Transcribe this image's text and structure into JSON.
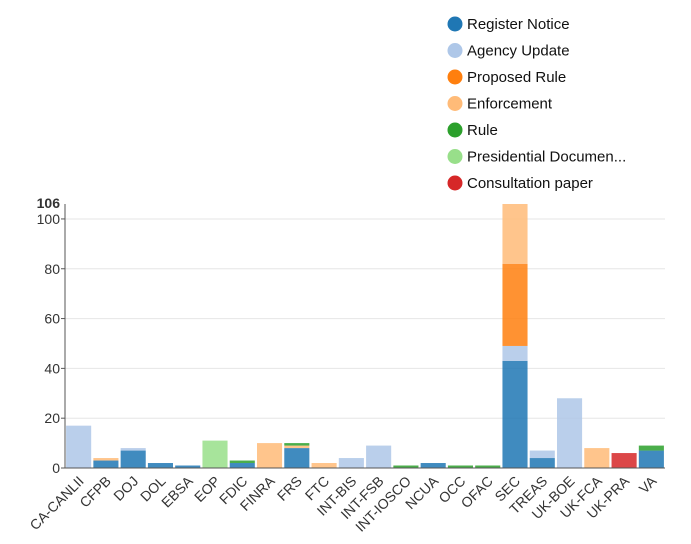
{
  "chart_data": {
    "type": "bar",
    "stacked": true,
    "categories": [
      "CA-CANLII",
      "CFPB",
      "DOJ",
      "DOL",
      "EBSA",
      "EOP",
      "FDIC",
      "FINRA",
      "FRS",
      "FTC",
      "INT-BIS",
      "INT-FSB",
      "INT-IOSCO",
      "NCUA",
      "OCC",
      "OFAC",
      "SEC",
      "TREAS",
      "UK-BOE",
      "UK-FCA",
      "UK-PRA",
      "VA"
    ],
    "series": [
      {
        "name": "Register Notice",
        "color": "#1f77b4",
        "values": [
          0,
          3,
          7,
          2,
          1,
          0,
          2,
          0,
          8,
          0,
          0,
          0,
          0,
          2,
          0,
          0,
          43,
          4,
          0,
          0,
          0,
          7
        ]
      },
      {
        "name": "Agency Update",
        "color": "#aec7e8",
        "values": [
          17,
          0,
          1,
          0,
          0,
          0,
          0,
          0,
          0,
          0,
          4,
          9,
          0,
          0,
          0,
          0,
          6,
          3,
          28,
          0,
          0,
          0
        ]
      },
      {
        "name": "Proposed Rule",
        "color": "#ff7f0e",
        "values": [
          0,
          0,
          0,
          0,
          0,
          0,
          0,
          0,
          0,
          0,
          0,
          0,
          0,
          0,
          0,
          0,
          33,
          0,
          0,
          0,
          0,
          0
        ]
      },
      {
        "name": "Enforcement",
        "color": "#ffbb78",
        "values": [
          0,
          1,
          0,
          0,
          0,
          0,
          0,
          10,
          1,
          2,
          0,
          0,
          0,
          0,
          0,
          0,
          24,
          0,
          0,
          8,
          0,
          0
        ]
      },
      {
        "name": "Rule",
        "color": "#2ca02c",
        "values": [
          0,
          0,
          0,
          0,
          0,
          0,
          1,
          0,
          1,
          0,
          0,
          0,
          1,
          0,
          1,
          1,
          0,
          0,
          0,
          0,
          0,
          2
        ]
      },
      {
        "name": "Presidential Documen...",
        "color": "#98df8a",
        "values": [
          0,
          0,
          0,
          0,
          0,
          11,
          0,
          0,
          0,
          0,
          0,
          0,
          0,
          0,
          0,
          0,
          0,
          0,
          0,
          0,
          0,
          0
        ]
      },
      {
        "name": "Consultation paper",
        "color": "#d62728",
        "values": [
          0,
          0,
          0,
          0,
          0,
          0,
          0,
          0,
          0,
          0,
          0,
          0,
          0,
          0,
          0,
          0,
          0,
          0,
          0,
          0,
          6,
          0
        ]
      }
    ],
    "ylim": [
      0,
      106
    ],
    "yticks": [
      0,
      20,
      40,
      60,
      80,
      100
    ],
    "ymax_label": "106",
    "grid": true,
    "legend_position": "top-right"
  }
}
